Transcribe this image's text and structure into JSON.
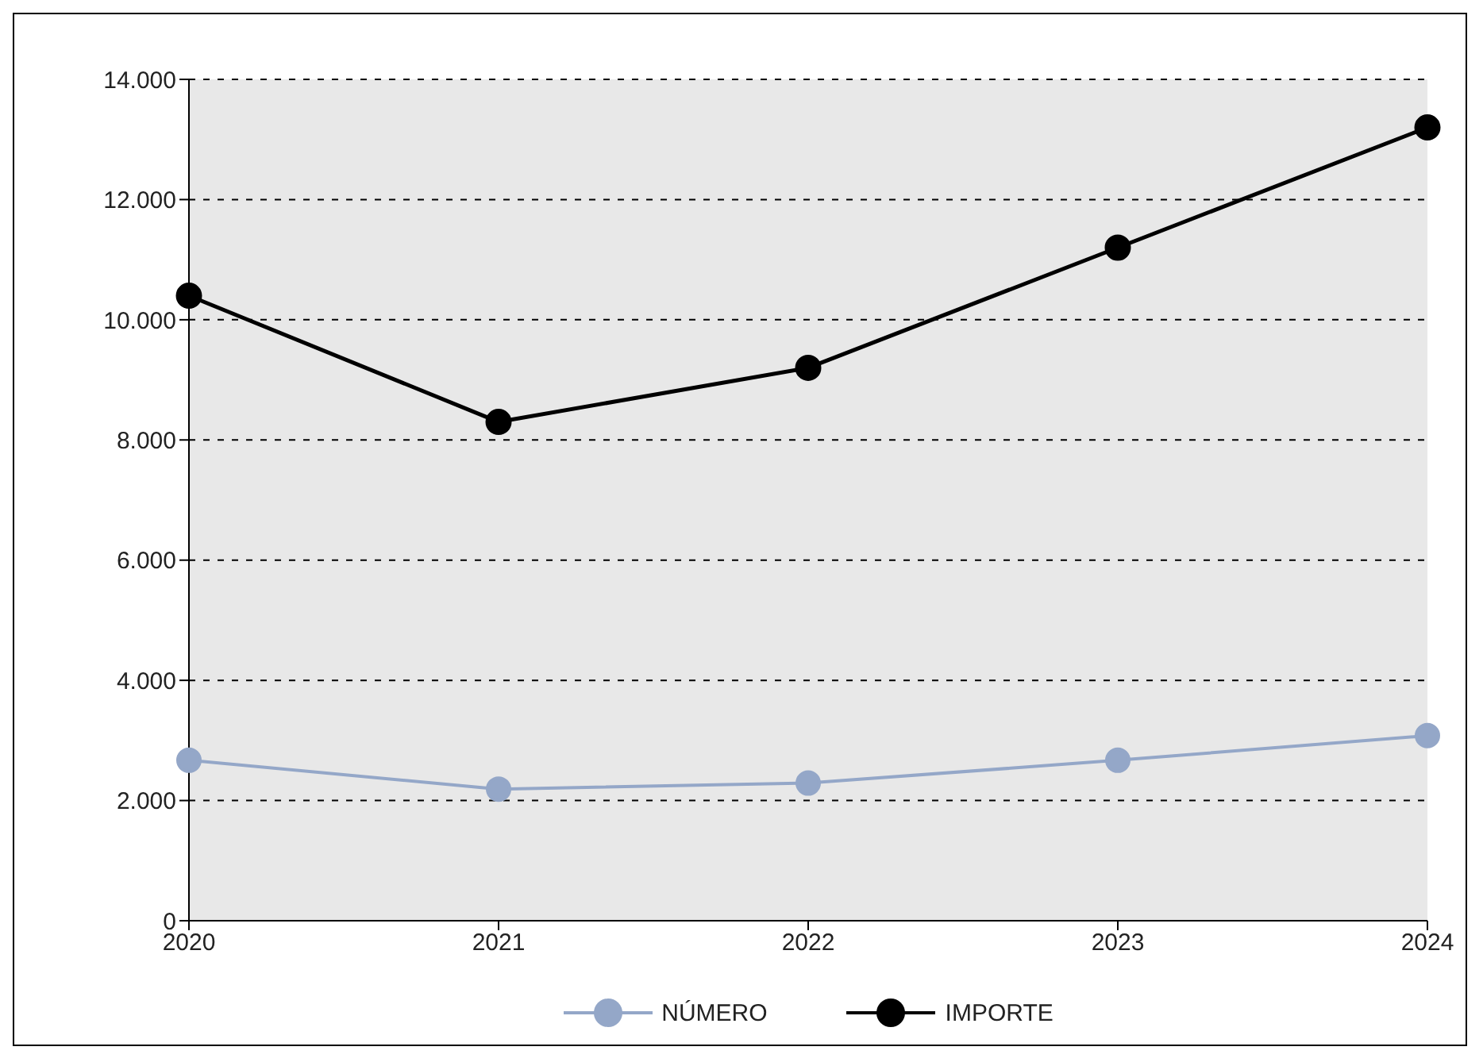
{
  "chart_data": {
    "type": "line",
    "categories": [
      "2020",
      "2021",
      "2022",
      "2023",
      "2024"
    ],
    "series": [
      {
        "name": "NÚMERO",
        "color": "#94a7c8",
        "values": [
          2670,
          2190,
          2290,
          2670,
          3080
        ]
      },
      {
        "name": "IMPORTE",
        "color": "#000000",
        "values": [
          10400,
          8300,
          9200,
          11200,
          13200
        ]
      }
    ],
    "ylim": [
      0,
      14000
    ],
    "yticks": [
      0,
      {
        "value": 2000,
        "label": "2.000"
      },
      {
        "value": 4000,
        "label": "4.000"
      },
      {
        "value": 6000,
        "label": "6.000"
      },
      {
        "value": 8000,
        "label": "8.000"
      },
      {
        "value": 10000,
        "label": "10.000"
      },
      {
        "value": 12000,
        "label": "12.000"
      },
      {
        "value": 14000,
        "label": "14.000"
      }
    ],
    "grid": "y",
    "legend": "bottom",
    "marker": "circle",
    "line_style": "solid"
  }
}
